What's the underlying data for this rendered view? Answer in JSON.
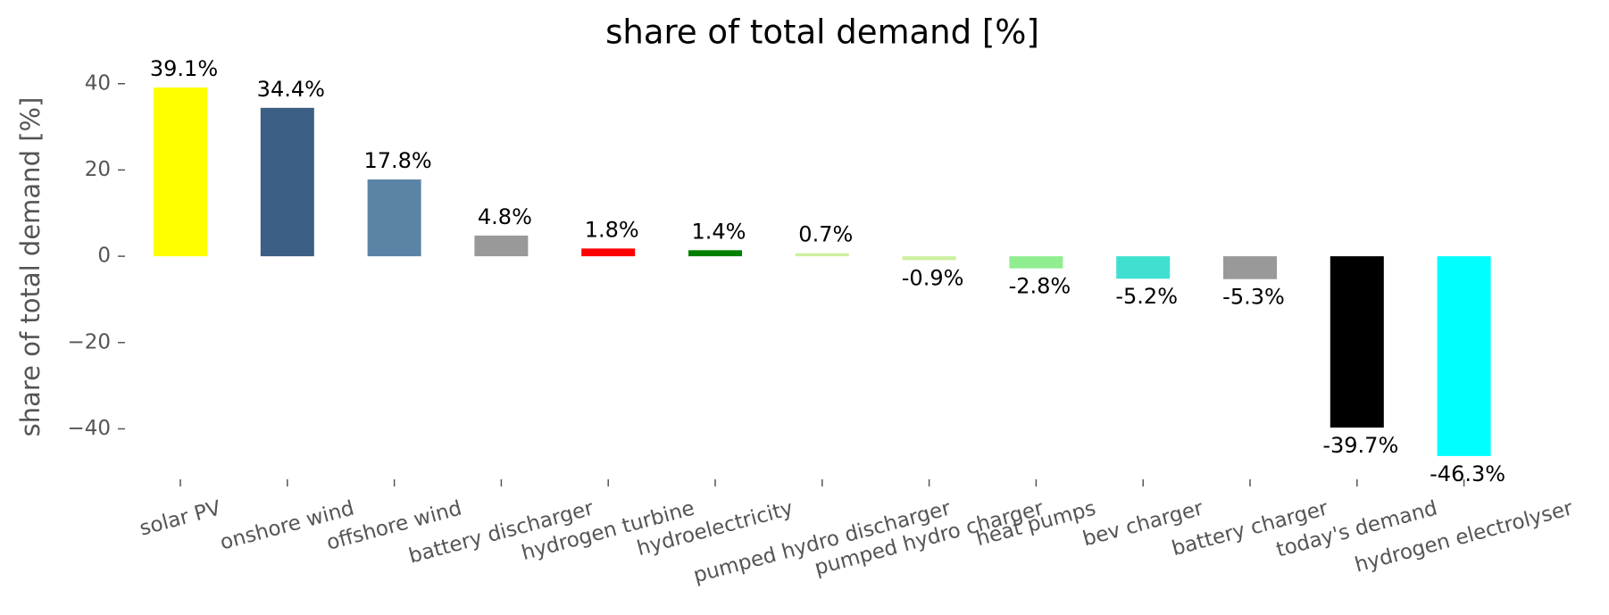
{
  "chart_data": {
    "type": "bar",
    "title": "share of total demand [%]",
    "y_label": "share of total demand [%]",
    "categories": [
      "solar PV",
      "onshore wind",
      "offshore wind",
      "battery discharger",
      "hydrogen turbine",
      "hydroelectricity",
      "pumped hydro discharger",
      "pumped hydro charger",
      "heat pumps",
      "bev charger",
      "battery charger",
      "today's demand",
      "hydrogen electrolyser"
    ],
    "values": [
      39.1,
      34.4,
      17.8,
      4.8,
      1.8,
      1.4,
      0.7,
      -0.9,
      -2.8,
      -5.2,
      -5.3,
      -39.7,
      -46.3
    ],
    "value_labels": [
      "39.1%",
      "34.4%",
      "17.8%",
      "4.8%",
      "1.8%",
      "1.4%",
      "0.7%",
      "-0.9%",
      "-2.8%",
      "-5.2%",
      "-5.3%",
      "-39.7%",
      "-46.3%"
    ],
    "colors": [
      "#ffff00",
      "#3b5f85",
      "#5b83a5",
      "#999999",
      "#ff0000",
      "#008000",
      "#ccf0a0",
      "#ccf0a0",
      "#90ee90",
      "#40e0d0",
      "#999999",
      "#000000",
      "#00ffff"
    ],
    "ylim": [
      -51.7,
      44.5
    ],
    "yticks": [
      {
        "value": -40,
        "label": "−40"
      },
      {
        "value": -20,
        "label": "−20"
      },
      0,
      20,
      40
    ]
  }
}
